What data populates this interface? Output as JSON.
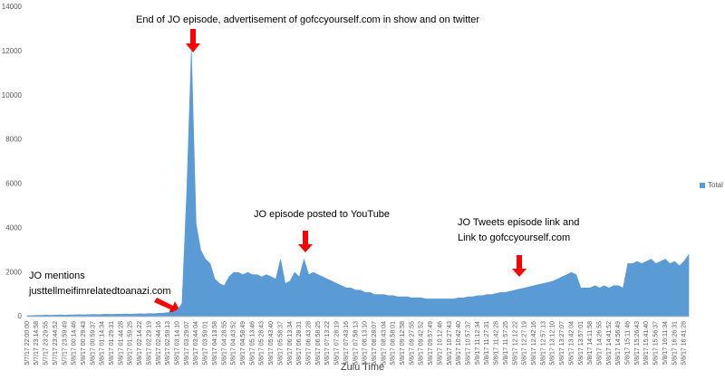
{
  "chart_data": {
    "type": "area",
    "x_label": "Zulu Time",
    "legend": "right",
    "ylim": [
      0,
      14000
    ],
    "yticks": [
      0,
      2000,
      4000,
      6000,
      8000,
      10000,
      12000,
      14000
    ],
    "annotations": [
      [
        "End of JO episode, advertisement of gofccyourself.com in show and on twitter"
      ],
      [
        "JO episode posted to YouTube"
      ],
      [
        "JO Tweets episode link and",
        "Link to gofccyourself.com"
      ],
      [
        "JO mentions",
        "justtellmeifimrelatedtoanazi.com"
      ]
    ],
    "categories": [
      "5/7/17 22:00:00",
      null,
      "5/7/17 23:14:58",
      null,
      "5/7/17 23:29:55",
      null,
      "5/7/17 23:44:52",
      null,
      "5/7/17 23:59:49",
      null,
      "5/8/17 00:14:46",
      null,
      "5/8/17 00:29:43",
      null,
      "5/8/17 00:59:37",
      null,
      "5/8/17 01:14:34",
      null,
      "5/8/17 01:29:31",
      null,
      "5/8/17 01:44:28",
      null,
      "5/8/17 01:59:25",
      null,
      "5/8/17 02:14:22",
      null,
      "5/8/17 02:29:19",
      null,
      "5/8/17 02:44:16",
      null,
      "5/8/17 02:59:13",
      null,
      "5/8/17 03:14:10",
      null,
      "5/8/17 03:29:07",
      null,
      "5/8/17 03:44:04",
      null,
      "5/8/17 03:59:01",
      null,
      "5/8/17 04:13:58",
      null,
      "5/8/17 04:28:55",
      null,
      "5/8/17 04:43:52",
      null,
      "5/8/17 04:58:49",
      null,
      "5/8/17 05:13:46",
      null,
      "5/8/17 05:28:43",
      null,
      "5/8/17 05:43:40",
      null,
      "5/8/17 05:58:37",
      null,
      "5/8/17 06:13:34",
      null,
      "5/8/17 06:28:31",
      null,
      "5/8/17 06:43:28",
      null,
      "5/8/17 06:58:25",
      null,
      "5/8/17 07:13:22",
      null,
      "5/8/17 07:28:19",
      null,
      "5/8/17 07:43:16",
      null,
      "5/8/17 07:58:13",
      null,
      "5/8/17 08:13:10",
      null,
      "5/8/17 08:28:07",
      null,
      "5/8/17 08:43:04",
      null,
      "5/8/17 08:58:01",
      null,
      "5/8/17 09:12:58",
      null,
      "5/8/17 09:27:55",
      null,
      "5/8/17 09:42:52",
      null,
      "5/8/17 09:57:49",
      null,
      "5/8/17 10:12:46",
      null,
      "5/8/17 10:27:43",
      null,
      "5/8/17 10:42:40",
      null,
      "5/8/17 10:57:37",
      null,
      "5/8/17 11:12:34",
      null,
      "5/8/17 11:27:31",
      null,
      "5/8/17 11:42:28",
      null,
      "5/8/17 11:57:25",
      null,
      "5/8/17 12:12:22",
      null,
      "5/8/17 12:27:19",
      null,
      "5/8/17 12:42:16",
      null,
      "5/8/17 12:57:13",
      null,
      "5/8/17 13:12:10",
      null,
      "5/8/17 13:27:07",
      null,
      "5/8/17 13:42:04",
      null,
      "5/8/17 13:57:01",
      null,
      "5/8/17 14:11:58",
      null,
      "5/8/17 14:26:55",
      null,
      "5/8/17 14:41:52",
      null,
      "5/8/17 14:56:49",
      null,
      "5/8/17 15:11:46",
      null,
      "5/8/17 15:26:43",
      null,
      "5/8/17 15:41:40",
      null,
      "5/8/17 15:56:37",
      null,
      "5/8/17 16:11:34",
      null,
      "5/8/17 16:26:31",
      null,
      "5/8/17 16:41:28",
      null
    ],
    "series": [
      {
        "name": "Total",
        "color": "#5b9bd5",
        "values": [
          40,
          50,
          60,
          60,
          70,
          60,
          70,
          80,
          70,
          80,
          80,
          90,
          80,
          90,
          100,
          90,
          100,
          110,
          100,
          110,
          110,
          120,
          110,
          120,
          130,
          120,
          140,
          130,
          150,
          160,
          180,
          200,
          300,
          600,
          5600,
          12100,
          4200,
          3000,
          2600,
          2400,
          1700,
          1500,
          1400,
          1800,
          2000,
          2000,
          1900,
          2000,
          1900,
          1900,
          1800,
          1900,
          1800,
          1700,
          2600,
          1500,
          1600,
          2000,
          1800,
          2600,
          1900,
          2000,
          1900,
          1800,
          1700,
          1600,
          1500,
          1400,
          1300,
          1300,
          1200,
          1200,
          1100,
          1100,
          1000,
          1000,
          1000,
          950,
          950,
          900,
          900,
          900,
          850,
          850,
          850,
          800,
          800,
          800,
          800,
          800,
          800,
          800,
          850,
          850,
          900,
          900,
          950,
          950,
          1000,
          1000,
          1050,
          1100,
          1100,
          1150,
          1200,
          1250,
          1300,
          1350,
          1400,
          1450,
          1500,
          1550,
          1600,
          1700,
          1800,
          1900,
          2000,
          1900,
          1300,
          1300,
          1300,
          1400,
          1300,
          1400,
          1300,
          1400,
          1400,
          1300,
          2400,
          2400,
          2500,
          2400,
          2500,
          2600,
          2400,
          2500,
          2600,
          2400,
          2500,
          2300,
          2500,
          2800
        ]
      }
    ]
  }
}
